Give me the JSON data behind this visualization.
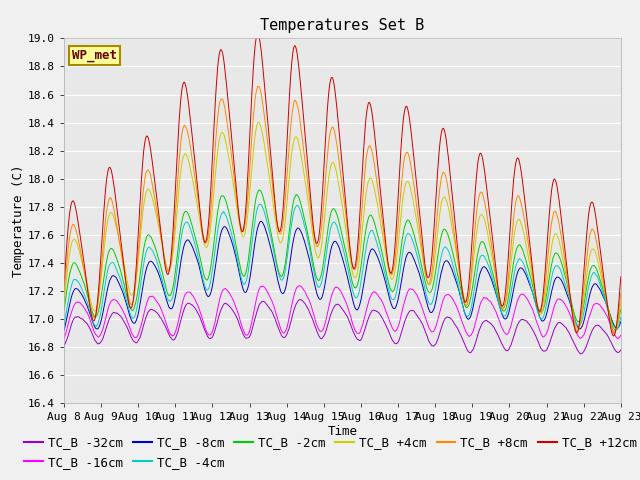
{
  "title": "Temperatures Set B",
  "xlabel": "Time",
  "ylabel": "Temperature (C)",
  "ylim": [
    16.4,
    19.0
  ],
  "xlim": [
    0,
    360
  ],
  "x_tick_labels": [
    "Aug 8",
    "Aug 9",
    "Aug 10",
    "Aug 11",
    "Aug 12",
    "Aug 13",
    "Aug 14",
    "Aug 15",
    "Aug 16",
    "Aug 17",
    "Aug 18",
    "Aug 19",
    "Aug 20",
    "Aug 21",
    "Aug 22",
    "Aug 23"
  ],
  "x_tick_positions": [
    0,
    24,
    48,
    72,
    96,
    120,
    144,
    168,
    192,
    216,
    240,
    264,
    288,
    312,
    336,
    360
  ],
  "series": [
    {
      "label": "TC_B -32cm",
      "color": "#9900cc"
    },
    {
      "label": "TC_B -16cm",
      "color": "#ff00ff"
    },
    {
      "label": "TC_B -8cm",
      "color": "#0000cc"
    },
    {
      "label": "TC_B -4cm",
      "color": "#00cccc"
    },
    {
      "label": "TC_B -2cm",
      "color": "#00cc00"
    },
    {
      "label": "TC_B +4cm",
      "color": "#cccc00"
    },
    {
      "label": "TC_B +8cm",
      "color": "#ff8800"
    },
    {
      "label": "TC_B +12cm",
      "color": "#cc0000"
    }
  ],
  "wp_met_label": "WP_met",
  "wp_met_bg": "#ffff99",
  "wp_met_border": "#aa8800",
  "plot_bg": "#e8e8e8",
  "title_fontsize": 11,
  "axis_fontsize": 9,
  "tick_fontsize": 8,
  "legend_fontsize": 9
}
